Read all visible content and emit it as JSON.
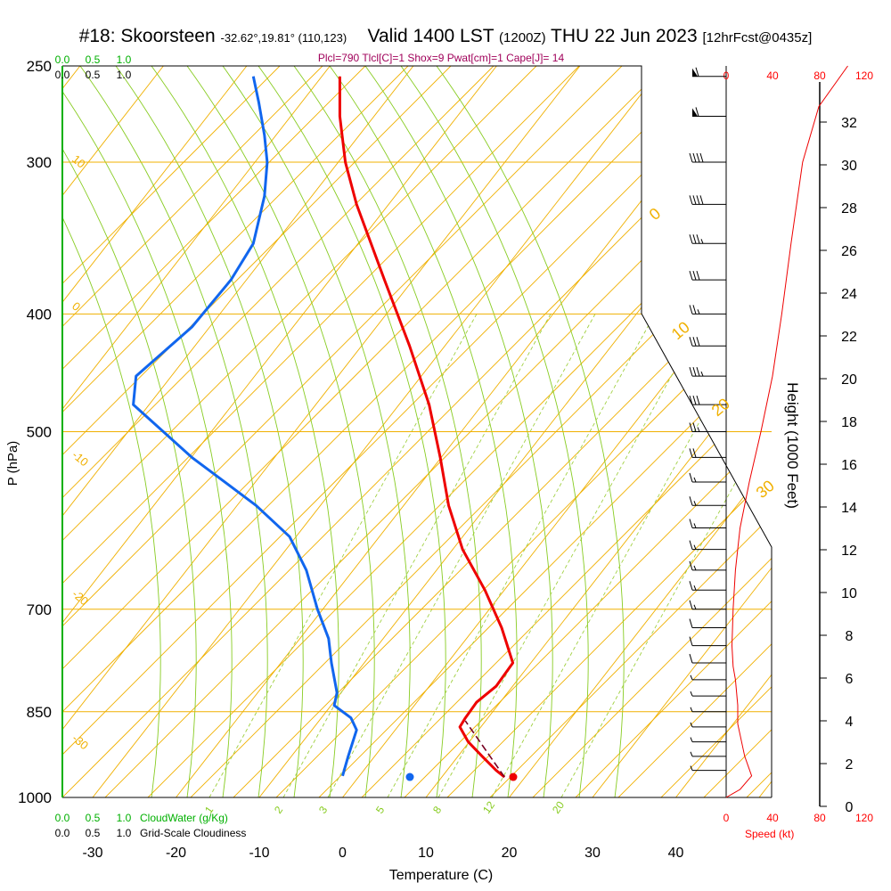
{
  "header": {
    "station": "#18: Skoorsteen",
    "coords": "-32.62°,19.81° (110,123)",
    "valid": "Valid 1400 LST",
    "zulu": "(1200Z)",
    "date": "THU 22 Jun 2023",
    "forecast": "[12hrFcst@0435z]",
    "indices": "Plcl=790 Tlcl[C]=1 Shox=9 Pwat[cm]=1 Cape[J]= 14"
  },
  "chart_data": {
    "type": "line",
    "title": "#18: Skoorsteen",
    "xlabel": "Temperature (C)",
    "ylabel": "P (hPa)",
    "y2label": "Height (1000 Feet)",
    "xlim": [
      -35,
      35
    ],
    "ylim": [
      1000,
      250
    ],
    "x_ticks": [
      "-30",
      "-20",
      "-10",
      "0",
      "10",
      "20",
      "30",
      "40"
    ],
    "x_tick_values": [
      -30,
      -20,
      -10,
      0,
      10,
      20,
      30,
      40
    ],
    "p_ticks": [
      "250",
      "300",
      "400",
      "500",
      "700",
      "850",
      "1000"
    ],
    "p_tick_values": [
      250,
      300,
      400,
      500,
      700,
      850,
      1000
    ],
    "height_ticks": [
      "0",
      "2",
      "4",
      "6",
      "8",
      "10",
      "12",
      "14",
      "16",
      "18",
      "20",
      "22",
      "24",
      "26",
      "28",
      "30",
      "32"
    ],
    "height_tick_values": [
      0,
      2,
      4,
      6,
      8,
      10,
      12,
      14,
      16,
      18,
      20,
      22,
      24,
      26,
      28,
      30,
      32
    ],
    "series": [
      {
        "name": "temperature",
        "color": "#ee0000",
        "points": [
          [
            -0.5,
            255
          ],
          [
            -0.5,
            265
          ],
          [
            -0.5,
            275
          ],
          [
            0.5,
            300
          ],
          [
            2.5,
            325
          ],
          [
            7.5,
            375
          ],
          [
            12.0,
            425
          ],
          [
            15.5,
            475
          ],
          [
            17.5,
            525
          ],
          [
            19.0,
            575
          ],
          [
            21.5,
            625
          ],
          [
            25.5,
            675
          ],
          [
            28.5,
            725
          ],
          [
            30.5,
            775
          ],
          [
            27.5,
            810
          ],
          [
            24.0,
            835
          ],
          [
            22.0,
            860
          ],
          [
            21.0,
            875
          ],
          [
            22.5,
            900
          ],
          [
            25.0,
            925
          ],
          [
            27.5,
            950
          ],
          [
            29.0,
            962
          ]
        ]
      },
      {
        "name": "dewpoint",
        "color": "#1166ee",
        "points": [
          [
            -16.0,
            255
          ],
          [
            -15.0,
            268
          ],
          [
            -14.0,
            285
          ],
          [
            -13.5,
            300
          ],
          [
            -14.0,
            320
          ],
          [
            -16.0,
            350
          ],
          [
            -20.0,
            375
          ],
          [
            -27.0,
            410
          ],
          [
            -37.0,
            450
          ],
          [
            -37.5,
            475
          ],
          [
            -27.0,
            525
          ],
          [
            -15.5,
            575
          ],
          [
            -9.5,
            610
          ],
          [
            -6.5,
            650
          ],
          [
            -4.5,
            700
          ],
          [
            -2.5,
            740
          ],
          [
            -2.0,
            775
          ],
          [
            -1.0,
            820
          ],
          [
            -1.5,
            840
          ],
          [
            1.5,
            860
          ],
          [
            2.5,
            880
          ],
          [
            1.0,
            925
          ],
          [
            0.0,
            960
          ]
        ]
      },
      {
        "name": "parcel",
        "color": "#770022",
        "points": [
          [
            29.0,
            962
          ],
          [
            22.0,
            865
          ]
        ]
      }
    ],
    "surface_points": [
      {
        "name": "temperature",
        "t": 29.0,
        "p": 962,
        "color": "#ee0000"
      },
      {
        "name": "dewpoint",
        "t": 0.0,
        "p": 962,
        "color": "#1166ee"
      }
    ],
    "isotherm_labels": [
      "10",
      "0",
      "-10",
      "-20",
      "-30"
    ],
    "isotherm_label_values": [
      10,
      0,
      -10,
      -20,
      -30
    ],
    "mixing_ratio_labels": [
      "1",
      "2",
      "3",
      "5",
      "8",
      "12",
      "20"
    ],
    "mixing_ratio_values": [
      1,
      2,
      3,
      5,
      8,
      12,
      20
    ],
    "theta_labels": [
      "0",
      "10",
      "20",
      "30"
    ],
    "theta_label_values": [
      0,
      10,
      20,
      30
    ],
    "wind_barbs": [
      {
        "p": 255,
        "speed": 60
      },
      {
        "p": 275,
        "speed": 60
      },
      {
        "p": 300,
        "speed": 40
      },
      {
        "p": 325,
        "speed": 40
      },
      {
        "p": 350,
        "speed": 35
      },
      {
        "p": 375,
        "speed": 30
      },
      {
        "p": 400,
        "speed": 25
      },
      {
        "p": 425,
        "speed": 30
      },
      {
        "p": 450,
        "speed": 35
      },
      {
        "p": 475,
        "speed": 30
      },
      {
        "p": 500,
        "speed": 25
      },
      {
        "p": 525,
        "speed": 20
      },
      {
        "p": 550,
        "speed": 15
      },
      {
        "p": 575,
        "speed": 15
      },
      {
        "p": 600,
        "speed": 15
      },
      {
        "p": 625,
        "speed": 15
      },
      {
        "p": 650,
        "speed": 15
      },
      {
        "p": 675,
        "speed": 15
      },
      {
        "p": 700,
        "speed": 15
      },
      {
        "p": 725,
        "speed": 10
      },
      {
        "p": 750,
        "speed": 10
      },
      {
        "p": 775,
        "speed": 10
      },
      {
        "p": 800,
        "speed": 5
      },
      {
        "p": 825,
        "speed": 5
      },
      {
        "p": 850,
        "speed": 5
      },
      {
        "p": 875,
        "speed": 5
      },
      {
        "p": 900,
        "speed": 5
      },
      {
        "p": 925,
        "speed": 5
      },
      {
        "p": 950,
        "speed": 5
      }
    ],
    "wind_speed_profile": [
      [
        0,
        1000
      ],
      [
        12,
        985
      ],
      [
        22,
        960
      ],
      [
        16,
        925
      ],
      [
        10,
        870
      ],
      [
        10,
        840
      ],
      [
        8,
        800
      ],
      [
        6,
        780
      ],
      [
        5,
        750
      ],
      [
        6,
        700
      ],
      [
        8,
        650
      ],
      [
        12,
        600
      ],
      [
        20,
        550
      ],
      [
        30,
        500
      ],
      [
        40,
        450
      ],
      [
        48,
        400
      ],
      [
        56,
        350
      ],
      [
        66,
        300
      ],
      [
        80,
        270
      ],
      [
        105,
        250
      ]
    ],
    "wind_speed_ticks": [
      "0",
      "40",
      "80",
      "120"
    ],
    "wind_speed_tick_values": [
      0,
      40,
      80,
      120
    ],
    "wind_speed_label": "Speed (kt)",
    "cloudwater_ticks": [
      "0.0",
      "0.5",
      "1.0"
    ],
    "cloudiness_ticks": [
      "0.0",
      "0.5",
      "1.0"
    ],
    "cloudwater_label": "CloudWater (g/Kg)",
    "cloudiness_label": "Grid-Scale Cloudiness"
  },
  "colors": {
    "isotherm": "#f0b000",
    "dry_adiabat": "#88cc22",
    "mixing_ratio": "#a0d040",
    "temperature": "#ee0000",
    "dewpoint": "#1166ee",
    "cloudwater": "#00b000",
    "wind_speed": "#ee0000"
  }
}
